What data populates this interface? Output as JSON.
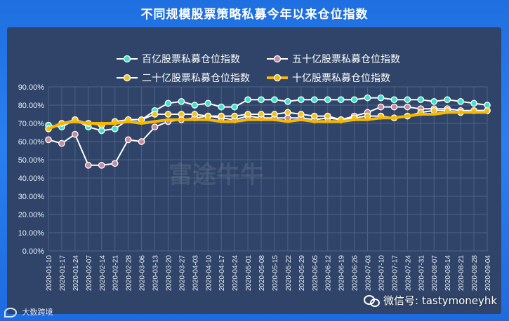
{
  "header": {
    "title": "不同规模股票策略私募今年以来仓位指数"
  },
  "footer": {
    "left_text": "大数跨境",
    "right_text": "微信号: tastymoneyhk"
  },
  "watermark": {
    "text": "富途牛牛"
  },
  "colors": {
    "series_1": "#3de3c8",
    "series_2": "#c98aa0",
    "series_3": "#f0c420",
    "series_4": "#f6b800",
    "grid": "#4b6385",
    "axis_text": "#e8eef8",
    "panel": "#2f4468"
  },
  "icons": {
    "wechat": "wechat-icon",
    "brand": "brand-icon"
  },
  "chart_data": {
    "type": "line",
    "title": "",
    "xlabel": "",
    "ylabel": "",
    "ylim": [
      0,
      90
    ],
    "y_ticks": [
      "0.00%",
      "10.00%",
      "20.00%",
      "30.00%",
      "40.00%",
      "50.00%",
      "60.00%",
      "70.00%",
      "80.00%",
      "90.00%"
    ],
    "grid": true,
    "legend_position": "top",
    "categories": [
      "2020-01-10",
      "2020-01-17",
      "2020-01-24",
      "2020-02-07",
      "2020-02-14",
      "2020-02-21",
      "2020-02-28",
      "2020-03-06",
      "2020-03-13",
      "2020-03-20",
      "2020-03-27",
      "2020-04-03",
      "2020-04-10",
      "2020-04-17",
      "2020-04-24",
      "2020-05-01",
      "2020-05-08",
      "2020-05-15",
      "2020-05-22",
      "2020-05-29",
      "2020-06-05",
      "2020-06-12",
      "2020-06-19",
      "2020-06-26",
      "2020-07-03",
      "2020-07-10",
      "2020-07-17",
      "2020-07-24",
      "2020-07-31",
      "2020-08-07",
      "2020-08-14",
      "2020-08-21",
      "2020-08-28",
      "2020-09-04"
    ],
    "series": [
      {
        "name": "百亿股票私募仓位指数",
        "style": "line-marker",
        "values": [
          69,
          68,
          72,
          68,
          66,
          67,
          72,
          72,
          77,
          81,
          82,
          80,
          81,
          79,
          79,
          83,
          83,
          83,
          82,
          83,
          83,
          83,
          83,
          83,
          84,
          84,
          83,
          83,
          83,
          82,
          83,
          82,
          81,
          80
        ]
      },
      {
        "name": "五十亿股票私募仓位指数",
        "style": "line-marker",
        "values": [
          61,
          59,
          64,
          47,
          47,
          48,
          61,
          60,
          68,
          71,
          72,
          73,
          74,
          73,
          72,
          74,
          73,
          73,
          73,
          73,
          72,
          73,
          72,
          74,
          76,
          79,
          79,
          79,
          78,
          78,
          78,
          77,
          77,
          77
        ]
      },
      {
        "name": "二十亿股票私募仓位指数",
        "style": "line-marker",
        "values": [
          67,
          70,
          72,
          70,
          69,
          71,
          72,
          72,
          75,
          75,
          75,
          75,
          74,
          74,
          74,
          75,
          75,
          75,
          76,
          75,
          74,
          74,
          72,
          73,
          74,
          74,
          73,
          74,
          76,
          77,
          77,
          76,
          77,
          77
        ]
      },
      {
        "name": "十亿股票私募仓位指数",
        "style": "thick-line",
        "values": [
          67,
          70,
          71,
          70,
          70,
          70,
          71,
          70,
          71,
          72,
          72,
          72,
          72,
          71,
          71,
          72,
          72,
          72,
          71,
          72,
          71,
          71,
          71,
          72,
          72,
          73,
          73,
          74,
          75,
          75,
          76,
          76,
          76,
          76
        ]
      }
    ]
  }
}
